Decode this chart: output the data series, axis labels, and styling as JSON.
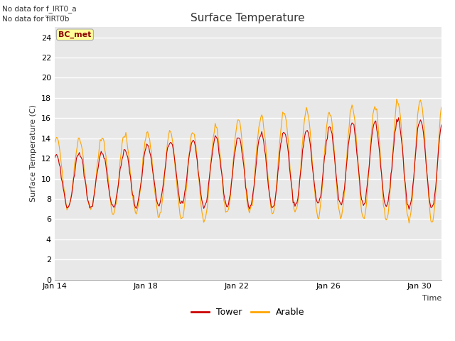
{
  "title": "Surface Temperature",
  "xlabel": "Time",
  "ylabel": "Surface Temperature (C)",
  "ylim": [
    0,
    25
  ],
  "yticks": [
    0,
    2,
    4,
    6,
    8,
    10,
    12,
    14,
    16,
    18,
    20,
    22,
    24
  ],
  "xtick_labels": [
    "Jan 14",
    "Jan 18",
    "Jan 22",
    "Jan 26",
    "Jan 30"
  ],
  "annotation1": "No data for f_IRT0_a",
  "annotation2": "No data for f̅IRT0̅b",
  "bc_met_label": "BC_met",
  "tower_color": "#cc0000",
  "arable_color": "#ffa500",
  "legend_tower": "Tower",
  "legend_arable": "Arable",
  "fig_bg_color": "#ffffff",
  "plot_bg_color": "#e8e8e8",
  "grid_color": "#ffffff",
  "n_points": 408
}
